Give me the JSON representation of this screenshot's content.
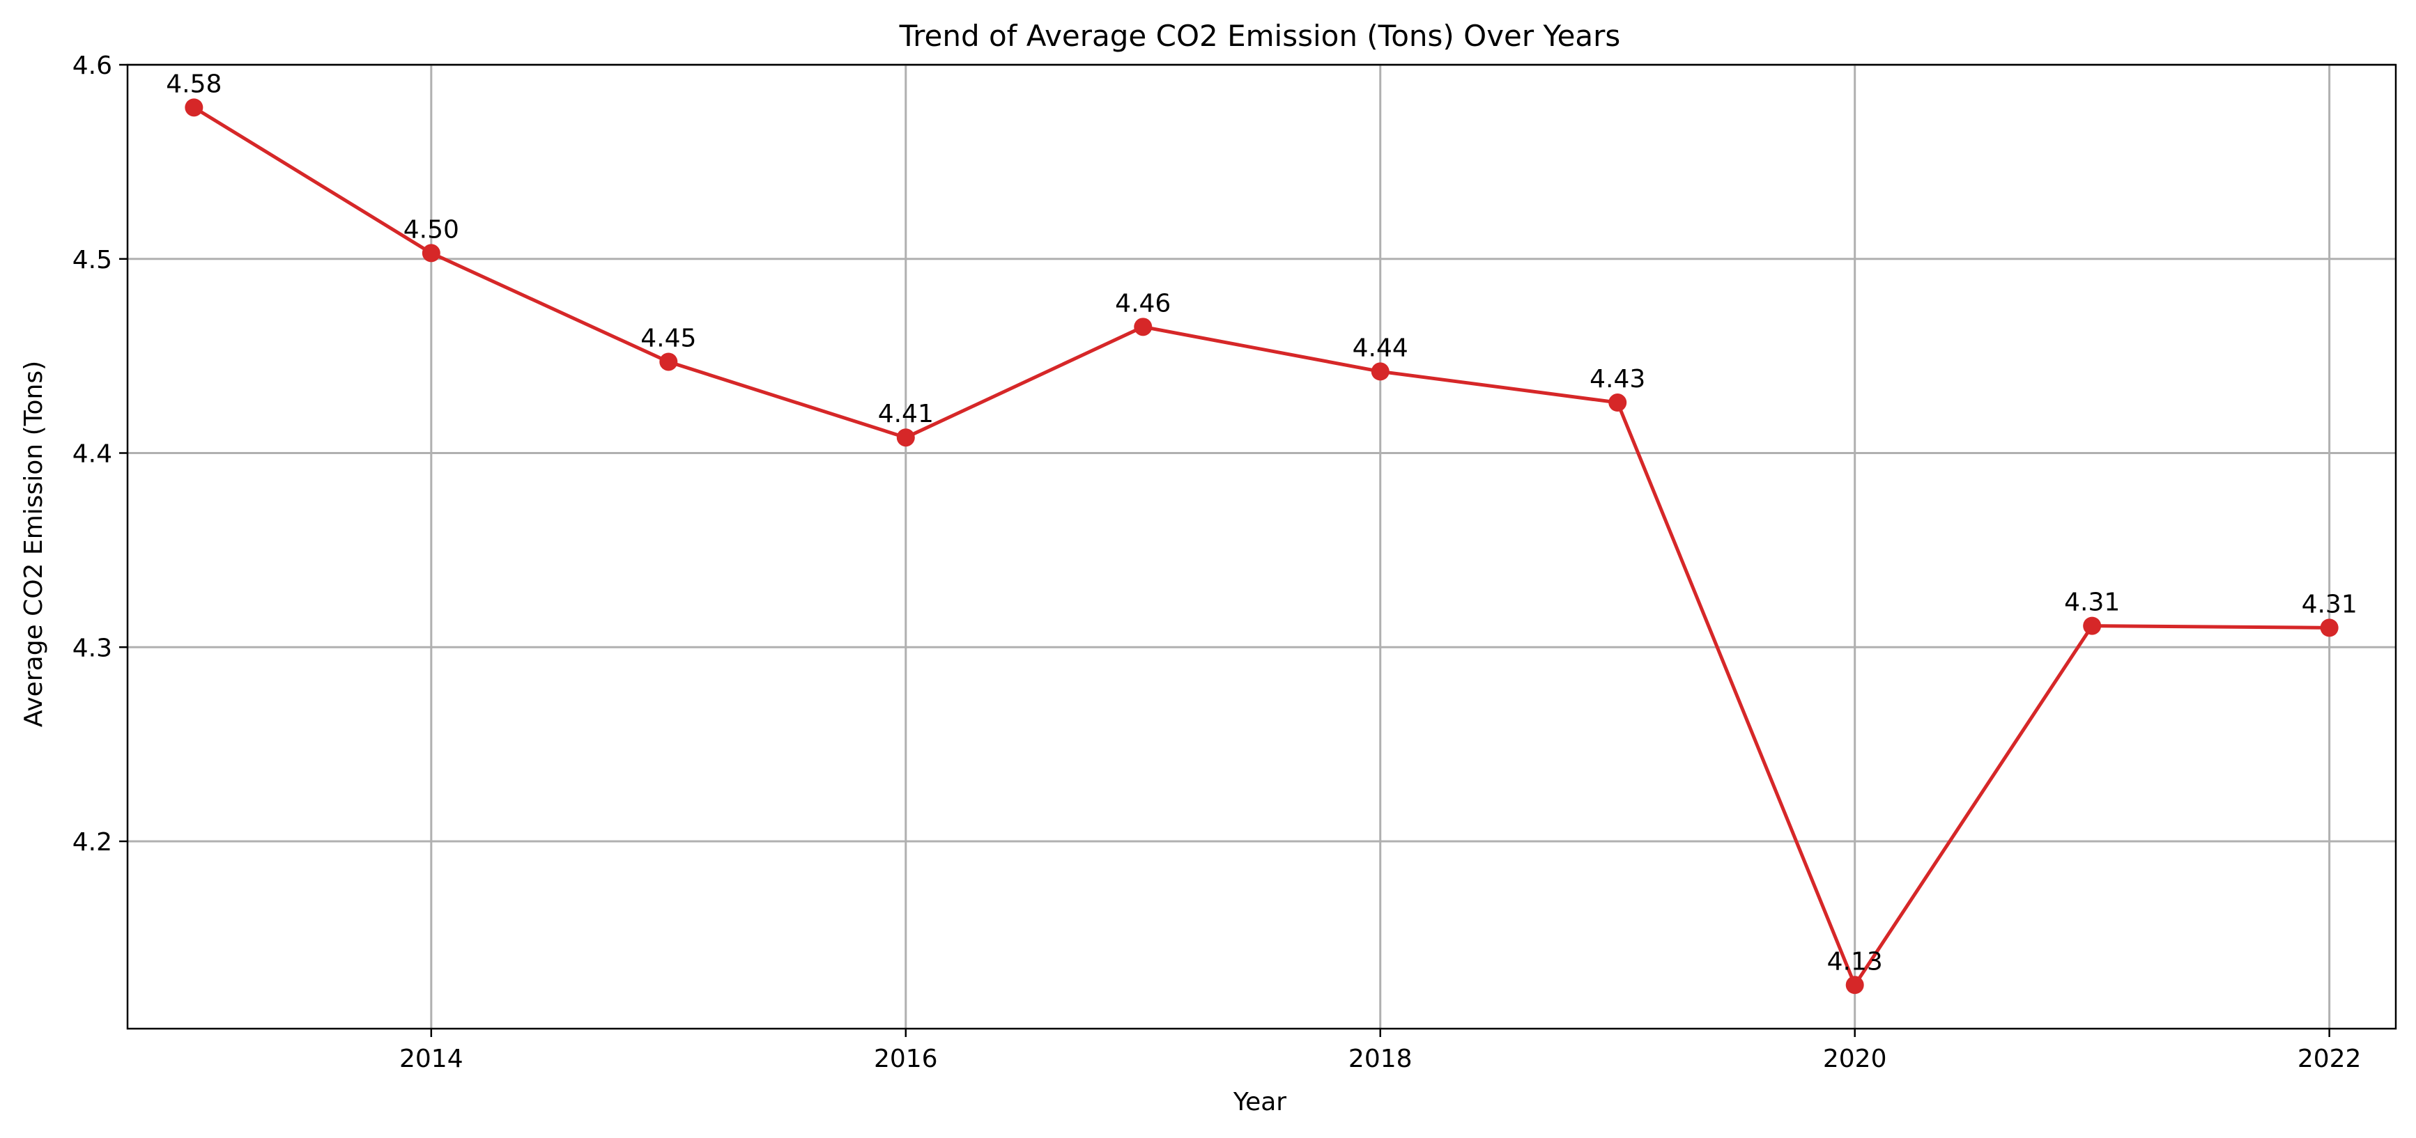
{
  "chart_data": {
    "type": "line",
    "title": "Trend of Average CO2 Emission (Tons) Over Years",
    "xlabel": "Year",
    "ylabel": "Average CO2 Emission (Tons)",
    "x": [
      2013,
      2014,
      2015,
      2016,
      2017,
      2018,
      2019,
      2020,
      2021,
      2022
    ],
    "series": [
      {
        "values": [
          4.578,
          4.503,
          4.447,
          4.408,
          4.465,
          4.442,
          4.426,
          4.126,
          4.311,
          4.31
        ],
        "data_labels": [
          "4.58",
          "4.50",
          "4.45",
          "4.41",
          "4.46",
          "4.44",
          "4.43",
          "4.13",
          "4.31",
          "4.31"
        ],
        "color": "#d62728",
        "marker": "circle"
      }
    ],
    "x_ticks": [
      2014,
      2016,
      2018,
      2020,
      2022
    ],
    "x_tick_labels": [
      "2014",
      "2016",
      "2018",
      "2020",
      "2022"
    ],
    "y_ticks": [
      4.2,
      4.3,
      4.4,
      4.5,
      4.6
    ],
    "y_tick_labels": [
      "4.2",
      "4.3",
      "4.4",
      "4.5",
      "4.6"
    ],
    "xlim": [
      2012.72,
      2022.28
    ],
    "ylim": [
      4.1035,
      4.6
    ],
    "grid": true,
    "legend": "none"
  }
}
